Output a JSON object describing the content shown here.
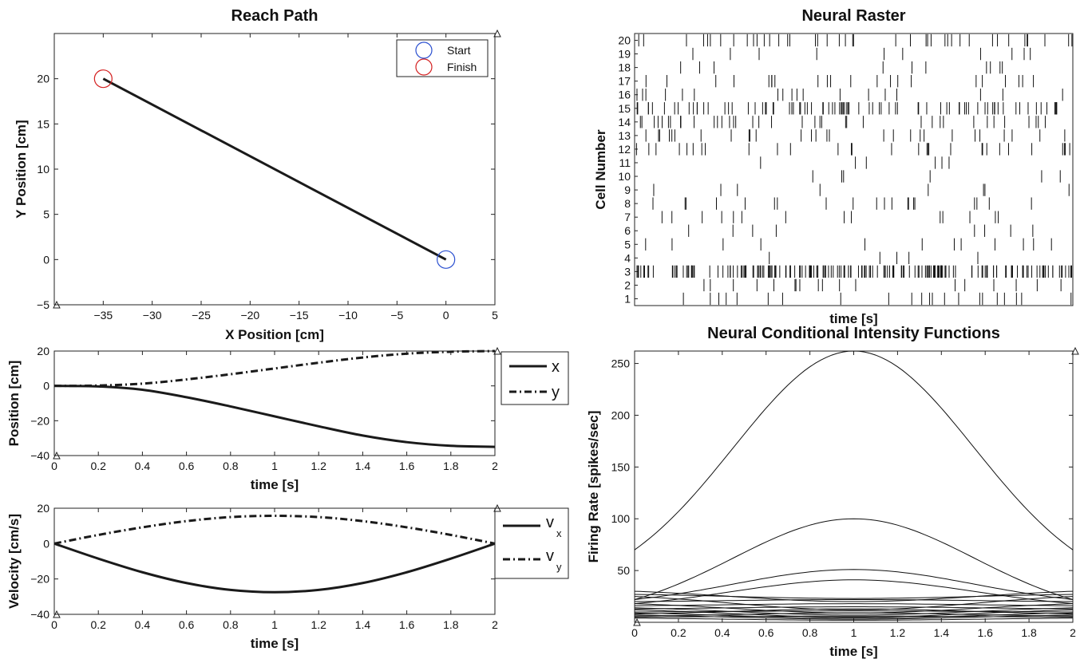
{
  "chart_data": [
    {
      "id": "reach",
      "type": "line",
      "title": "Reach Path",
      "xlabel": "X Position [cm]",
      "ylabel": "Y Position [cm]",
      "xlim": [
        -40,
        5
      ],
      "ylim": [
        -5,
        25
      ],
      "xticks": [
        -35,
        -30,
        -25,
        -20,
        -15,
        -10,
        -5,
        0,
        5
      ],
      "yticks": [
        -5,
        0,
        5,
        10,
        15,
        20
      ],
      "series": [
        {
          "x": [
            0,
            -35
          ],
          "y": [
            0,
            20
          ],
          "color": "#1a1a1a"
        }
      ],
      "markers": [
        {
          "name": "Start",
          "x": 0,
          "y": 0,
          "color": "#2a4fd0"
        },
        {
          "name": "Finish",
          "x": -35,
          "y": 20,
          "color": "#d42020"
        }
      ],
      "legend": {
        "position": "top-right",
        "entries": [
          "Start",
          "Finish"
        ]
      }
    },
    {
      "id": "position",
      "type": "line",
      "title": "",
      "xlabel": "time [s]",
      "ylabel": "Position [cm]",
      "xlim": [
        0,
        2
      ],
      "ylim": [
        -40,
        20
      ],
      "xticks": [
        0,
        0.2,
        0.4,
        0.6,
        0.8,
        1,
        1.2,
        1.4,
        1.6,
        1.8,
        2
      ],
      "yticks": [
        -40,
        -20,
        0,
        20
      ],
      "x": [
        0,
        0.2,
        0.4,
        0.6,
        0.8,
        1.0,
        1.2,
        1.4,
        1.6,
        1.8,
        2.0
      ],
      "series": [
        {
          "name": "x",
          "style": "solid",
          "values": [
            0,
            -0.3,
            -2.2,
            -6.5,
            -11.8,
            -17.5,
            -23.2,
            -28.5,
            -32.3,
            -34.4,
            -35
          ]
        },
        {
          "name": "y",
          "style": "dashdot",
          "values": [
            0,
            0.2,
            1.3,
            3.7,
            6.7,
            10,
            13.3,
            16.3,
            18.5,
            19.6,
            20
          ]
        }
      ],
      "legend": {
        "position": "outside-right",
        "entries": [
          "x",
          "y"
        ]
      }
    },
    {
      "id": "velocity",
      "type": "line",
      "title": "",
      "xlabel": "time [s]",
      "ylabel": "Velocity [cm/s]",
      "xlim": [
        0,
        2
      ],
      "ylim": [
        -40,
        20
      ],
      "xticks": [
        0,
        0.2,
        0.4,
        0.6,
        0.8,
        1,
        1.2,
        1.4,
        1.6,
        1.8,
        2
      ],
      "yticks": [
        -40,
        -20,
        0,
        20
      ],
      "x": [
        0,
        0.2,
        0.4,
        0.6,
        0.8,
        1.0,
        1.2,
        1.4,
        1.6,
        1.8,
        2.0
      ],
      "series": [
        {
          "name": "v_x",
          "style": "solid",
          "values": [
            0,
            -8.5,
            -16.2,
            -22.3,
            -26.2,
            -27.5,
            -26.2,
            -22.3,
            -16.2,
            -8.5,
            0
          ]
        },
        {
          "name": "v_y",
          "style": "dashdot",
          "values": [
            0,
            4.9,
            9.2,
            12.7,
            15,
            15.7,
            15,
            12.7,
            9.2,
            4.9,
            0
          ]
        }
      ],
      "legend": {
        "position": "outside-right",
        "entries": [
          {
            "base": "v",
            "sub": "x"
          },
          {
            "base": "v",
            "sub": "y"
          }
        ]
      }
    },
    {
      "id": "raster",
      "type": "scatter",
      "title": "Neural Raster",
      "xlabel": "time [s]",
      "ylabel": "Cell Number",
      "xlim": [
        0,
        2
      ],
      "ylim": [
        0.5,
        20.5
      ],
      "yticks": [
        1,
        2,
        3,
        4,
        5,
        6,
        7,
        8,
        9,
        10,
        11,
        12,
        13,
        14,
        15,
        16,
        17,
        18,
        19,
        20
      ],
      "marker": "vertical-tick",
      "spike_counts_per_cell": [
        22,
        18,
        190,
        5,
        12,
        8,
        14,
        20,
        8,
        6,
        6,
        30,
        28,
        38,
        85,
        18,
        22,
        10,
        10,
        42
      ]
    },
    {
      "id": "cif",
      "type": "line",
      "title": "Neural Conditional Intensity Functions",
      "xlabel": "time [s]",
      "ylabel": "Firing Rate [spikes/sec]",
      "xlim": [
        0,
        2
      ],
      "ylim": [
        0,
        262
      ],
      "xticks": [
        0,
        0.2,
        0.4,
        0.6,
        0.8,
        1,
        1.2,
        1.4,
        1.6,
        1.8,
        2
      ],
      "yticks": [
        50,
        100,
        150,
        200,
        250
      ],
      "curve_model": "gaussian bump between edge value at t=0/t=2 and peak value at t=1",
      "series": [
        {
          "edge": 70,
          "peak": 262
        },
        {
          "edge": 22,
          "peak": 100
        },
        {
          "edge": 22,
          "peak": 51
        },
        {
          "edge": 18,
          "peak": 41
        },
        {
          "edge": 30,
          "peak": 20
        },
        {
          "edge": 27,
          "peak": 23
        },
        {
          "edge": 25,
          "peak": 12
        },
        {
          "edge": 20,
          "peak": 22
        },
        {
          "edge": 18,
          "peak": 9
        },
        {
          "edge": 16,
          "peak": 18
        },
        {
          "edge": 14,
          "peak": 7
        },
        {
          "edge": 13,
          "peak": 15
        },
        {
          "edge": 12,
          "peak": 5
        },
        {
          "edge": 10,
          "peak": 11
        },
        {
          "edge": 9,
          "peak": 4
        },
        {
          "edge": 8,
          "peak": 13
        },
        {
          "edge": 7,
          "peak": 3
        },
        {
          "edge": 6,
          "peak": 9
        },
        {
          "edge": 5,
          "peak": 6
        },
        {
          "edge": 4,
          "peak": 2
        }
      ]
    }
  ]
}
